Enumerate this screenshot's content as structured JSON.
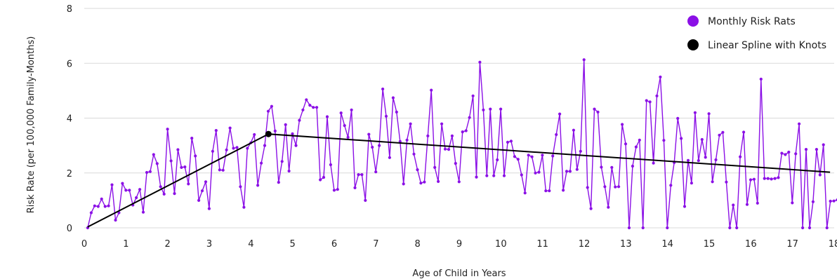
{
  "chart_data": {
    "type": "line",
    "title": "",
    "xlabel": "Age of Child in Years",
    "ylabel": "Risk Rate (per 100,000 Family-Months)",
    "xlim": [
      0,
      18
    ],
    "ylim": [
      0,
      8
    ],
    "x_ticks": [
      "0",
      "1",
      "2",
      "3",
      "4",
      "5",
      "6",
      "7",
      "8",
      "9",
      "10",
      "11",
      "12",
      "13",
      "14",
      "15",
      "16",
      "17",
      "18"
    ],
    "y_ticks": [
      "0",
      "2",
      "4",
      "6",
      "8"
    ],
    "grid": "horizontal",
    "legend_position": "top-right",
    "colors": {
      "monthly": "#8b10e6",
      "spline": "#000000",
      "grid": "#d9d9d9"
    },
    "series": [
      {
        "name": "Monthly Risk Rats",
        "style": "markers+line",
        "x_start": 0.0833,
        "x_step": 0.0833,
        "values": [
          0,
          0.55,
          0.8,
          0.78,
          1.05,
          0.78,
          0.8,
          1.57,
          0.28,
          0.55,
          1.62,
          1.37,
          1.37,
          0.83,
          1.1,
          1.4,
          0.57,
          2.02,
          2.05,
          2.67,
          2.34,
          1.5,
          1.23,
          3.6,
          2.44,
          1.25,
          2.85,
          2.2,
          2.22,
          1.6,
          3.27,
          2.62,
          1.0,
          1.35,
          1.68,
          0.7,
          2.79,
          3.55,
          2.11,
          2.1,
          2.84,
          3.64,
          2.9,
          2.93,
          1.5,
          0.75,
          2.9,
          3.1,
          3.4,
          1.55,
          2.36,
          3.0,
          4.25,
          4.43,
          3.53,
          1.66,
          2.42,
          3.76,
          2.07,
          3.43,
          3.0,
          3.92,
          4.3,
          4.67,
          4.47,
          4.39,
          4.39,
          1.75,
          1.84,
          4.05,
          2.3,
          1.37,
          1.4,
          4.19,
          3.73,
          3.3,
          4.3,
          1.46,
          1.94,
          1.94,
          1.0,
          3.41,
          2.94,
          2.04,
          3.0,
          5.06,
          4.07,
          2.56,
          4.74,
          4.22,
          3.15,
          1.6,
          3.2,
          3.79,
          2.69,
          2.12,
          1.63,
          1.67,
          3.35,
          5.02,
          2.2,
          1.69,
          3.79,
          2.87,
          2.86,
          3.35,
          2.35,
          1.68,
          3.5,
          3.54,
          4.02,
          4.81,
          1.85,
          6.04,
          4.3,
          1.9,
          4.33,
          1.9,
          2.48,
          4.33,
          1.9,
          3.12,
          3.16,
          2.6,
          2.5,
          1.93,
          1.27,
          2.65,
          2.59,
          2.0,
          2.03,
          2.65,
          1.35,
          1.35,
          2.62,
          3.4,
          4.15,
          1.37,
          2.06,
          2.06,
          3.56,
          2.13,
          2.79,
          6.13,
          1.47,
          0.7,
          4.33,
          4.22,
          2.21,
          1.5,
          0.75,
          2.2,
          1.49,
          1.5,
          3.77,
          3.06,
          0.0,
          2.25,
          2.95,
          3.2,
          0.0,
          4.64,
          4.59,
          2.36,
          4.81,
          5.5,
          3.19,
          0.0,
          1.55,
          2.38,
          3.99,
          3.26,
          0.78,
          2.46,
          1.63,
          4.2,
          2.45,
          3.22,
          2.57,
          4.16,
          1.68,
          2.48,
          3.38,
          3.48,
          1.67,
          0.0,
          0.83,
          0.0,
          2.59,
          3.49,
          0.85,
          1.75,
          1.77,
          0.9,
          5.42,
          1.8,
          1.8,
          1.78,
          1.8,
          1.83,
          2.72,
          2.67,
          2.76,
          0.91,
          2.7,
          3.79,
          0.0,
          2.86,
          0.0,
          0.95,
          2.86,
          1.93,
          3.03,
          0.0,
          0.97,
          0.98,
          1.02
        ]
      },
      {
        "name": "Linear Spline with Knots",
        "style": "line",
        "points": [
          [
            0.08,
            0.03
          ],
          [
            4.42,
            3.42
          ],
          [
            17.9,
            2.03
          ]
        ],
        "knots": [
          [
            4.42,
            3.42
          ]
        ]
      }
    ]
  }
}
